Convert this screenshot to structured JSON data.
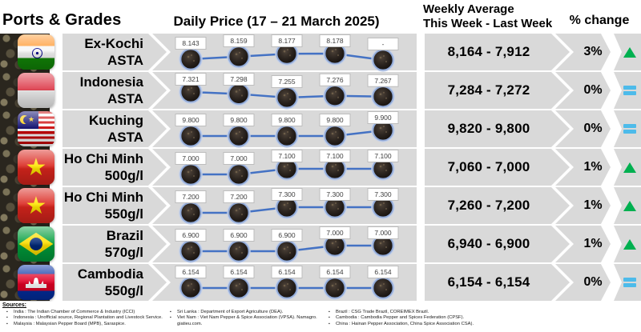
{
  "header": {
    "ports_grades": "Ports & Grades",
    "daily_price": "Daily Price (17 – 21 March 2025)",
    "weekly_line1": "Weekly Average",
    "weekly_line2": "This Week - Last Week",
    "pct_change": "% change"
  },
  "colors": {
    "band_gray": "#D9D9D9",
    "line_blue": "#4472C4",
    "up_green": "#00B050",
    "equal_blue": "#4DBBEA"
  },
  "chart_data": {
    "type": "line",
    "title": "Daily Price (17 – 21 March 2025)",
    "x": [
      1,
      2,
      3,
      4,
      5
    ],
    "legend_position": "none",
    "grid": false,
    "series": [
      {
        "name": "Ex-Kochi ASTA",
        "values": [
          8.143,
          8.159,
          8.177,
          8.178,
          null
        ]
      },
      {
        "name": "Indonesia ASTA",
        "values": [
          7.321,
          7.298,
          7.255,
          7.276,
          7.267
        ]
      },
      {
        "name": "Kuching ASTA",
        "values": [
          9.8,
          9.8,
          9.8,
          9.8,
          9.9
        ]
      },
      {
        "name": "Ho Chi Minh 500g/l",
        "values": [
          7.0,
          7.0,
          7.1,
          7.1,
          7.1
        ]
      },
      {
        "name": "Ho Chi Minh 550g/l",
        "values": [
          7.2,
          7.2,
          7.3,
          7.3,
          7.3
        ]
      },
      {
        "name": "Brazil 570g/l",
        "values": [
          6.9,
          6.9,
          6.9,
          7.0,
          7.0
        ]
      },
      {
        "name": "Cambodia 550g/l",
        "values": [
          6.154,
          6.154,
          6.154,
          6.154,
          6.154
        ]
      }
    ]
  },
  "rows": [
    {
      "port": "Ex-Kochi",
      "grade": "ASTA",
      "flag": "india",
      "daily_labels": [
        "8.143",
        "8.159",
        "8.177",
        "8.178",
        "-"
      ],
      "daily_values": [
        8.143,
        8.159,
        8.177,
        8.178,
        null
      ],
      "weekly": "8,164 - 7,912",
      "pct": "3%",
      "trend": "up"
    },
    {
      "port": "Indonesia",
      "grade": "ASTA",
      "flag": "indonesia",
      "daily_labels": [
        "7.321",
        "7.298",
        "7.255",
        "7.276",
        "7.267"
      ],
      "daily_values": [
        7.321,
        7.298,
        7.255,
        7.276,
        7.267
      ],
      "weekly": "7,284 - 7,272",
      "pct": "0%",
      "trend": "equal"
    },
    {
      "port": "Kuching",
      "grade": "ASTA",
      "flag": "malaysia",
      "daily_labels": [
        "9.800",
        "9.800",
        "9.800",
        "9.800",
        "9.900"
      ],
      "daily_values": [
        9.8,
        9.8,
        9.8,
        9.8,
        9.9
      ],
      "weekly": "9,820 - 9,800",
      "pct": "0%",
      "trend": "equal"
    },
    {
      "port": "Ho Chi Minh",
      "grade": "500g/l",
      "flag": "vietnam",
      "daily_labels": [
        "7.000",
        "7.000",
        "7.100",
        "7.100",
        "7.100"
      ],
      "daily_values": [
        7.0,
        7.0,
        7.1,
        7.1,
        7.1
      ],
      "weekly": "7,060 - 7,000",
      "pct": "1%",
      "trend": "up"
    },
    {
      "port": "Ho Chi Minh",
      "grade": "550g/l",
      "flag": "vietnam",
      "daily_labels": [
        "7.200",
        "7.200",
        "7.300",
        "7.300",
        "7.300"
      ],
      "daily_values": [
        7.2,
        7.2,
        7.3,
        7.3,
        7.3
      ],
      "weekly": "7,260 - 7,200",
      "pct": "1%",
      "trend": "up"
    },
    {
      "port": "Brazil",
      "grade": "570g/l",
      "flag": "brazil",
      "daily_labels": [
        "6.900",
        "6.900",
        "6.900",
        "7.000",
        "7.000"
      ],
      "daily_values": [
        6.9,
        6.9,
        6.9,
        7.0,
        7.0
      ],
      "weekly": "6,940 - 6,900",
      "pct": "1%",
      "trend": "up"
    },
    {
      "port": "Cambodia",
      "grade": "550g/l",
      "flag": "cambodia",
      "daily_labels": [
        "6.154",
        "6.154",
        "6.154",
        "6.154",
        "6.154"
      ],
      "daily_values": [
        6.154,
        6.154,
        6.154,
        6.154,
        6.154
      ],
      "weekly": "6,154 - 6,154",
      "pct": "0%",
      "trend": "equal"
    }
  ],
  "sources": {
    "title": "Sources:",
    "columns": [
      [
        "India : The Indian Chamber of Commerce & Industry (ICCI)",
        "Indonesia : Unofficial source, Regional Plantation and Livestock Service.",
        "Malaysia : Malaysian Pepper Board (MPB), Saraspice."
      ],
      [
        "Sri Lanka : Department of Export Agriculture (DEA).",
        "Viet Nam : Viet Nam Pepper & Spice Association (VPSA). Namagro. giatieu.com."
      ],
      [
        "Brazil : CSG Trade Brazil, COREIMEX Brazil.",
        "Cambodia : Cambodia Pepper and Spices Federation (CPSF).",
        "China : Hainan Pepper Association, China Spice Association CSA)."
      ]
    ]
  }
}
